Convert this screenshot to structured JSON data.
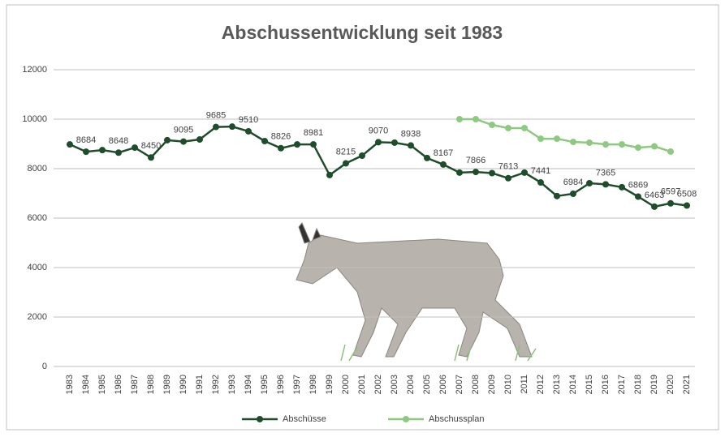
{
  "chart_data": {
    "type": "line",
    "title": "Abschussentwicklung seit 1983",
    "categories": [
      "1983",
      "1984",
      "1985",
      "1986",
      "1987",
      "1988",
      "1989",
      "1990",
      "1991",
      "1992",
      "1993",
      "1994",
      "1995",
      "1996",
      "1997",
      "1998",
      "1999",
      "2000",
      "2001",
      "2002",
      "2003",
      "2004",
      "2005",
      "2006",
      "2007",
      "2008",
      "2009",
      "2010",
      "2011",
      "2012",
      "2013",
      "2014",
      "2015",
      "2016",
      "2017",
      "2018",
      "2019",
      "2020",
      "2021"
    ],
    "series": [
      {
        "name": "Abschüsse",
        "color": "#1e4d2b",
        "values": [
          8980,
          8684,
          8750,
          8648,
          8850,
          8450,
          9150,
          9095,
          9180,
          9685,
          9700,
          9510,
          9115,
          8826,
          8980,
          8981,
          7740,
          8215,
          8525,
          9070,
          9050,
          8938,
          8430,
          8167,
          7840,
          7866,
          7820,
          7613,
          7840,
          7441,
          6890,
          6984,
          7410,
          7365,
          7250,
          6869,
          6463,
          6597,
          6508
        ],
        "value_labels": [
          null,
          "8684",
          null,
          "8648",
          null,
          "8450",
          null,
          "9095",
          null,
          "9685",
          null,
          "9510",
          null,
          "8826",
          null,
          "8981",
          null,
          "8215",
          null,
          "9070",
          null,
          "8938",
          null,
          "8167",
          null,
          "7866",
          null,
          "7613",
          null,
          "7441",
          null,
          "6984",
          null,
          "7365",
          null,
          "6869",
          "6463",
          "6597",
          "6508"
        ]
      },
      {
        "name": "Abschussplan",
        "color": "#8dc97f",
        "values": [
          null,
          null,
          null,
          null,
          null,
          null,
          null,
          null,
          null,
          null,
          null,
          null,
          null,
          null,
          null,
          null,
          null,
          null,
          null,
          null,
          null,
          null,
          null,
          null,
          10000,
          10000,
          9770,
          9640,
          9640,
          9210,
          9210,
          9080,
          9050,
          8980,
          8980,
          8850,
          8900,
          8690,
          null
        ]
      }
    ],
    "ylim": [
      0,
      12000
    ],
    "yticks": [
      0,
      2000,
      4000,
      6000,
      8000,
      10000,
      12000
    ],
    "grid": true,
    "legend": "bottom"
  }
}
